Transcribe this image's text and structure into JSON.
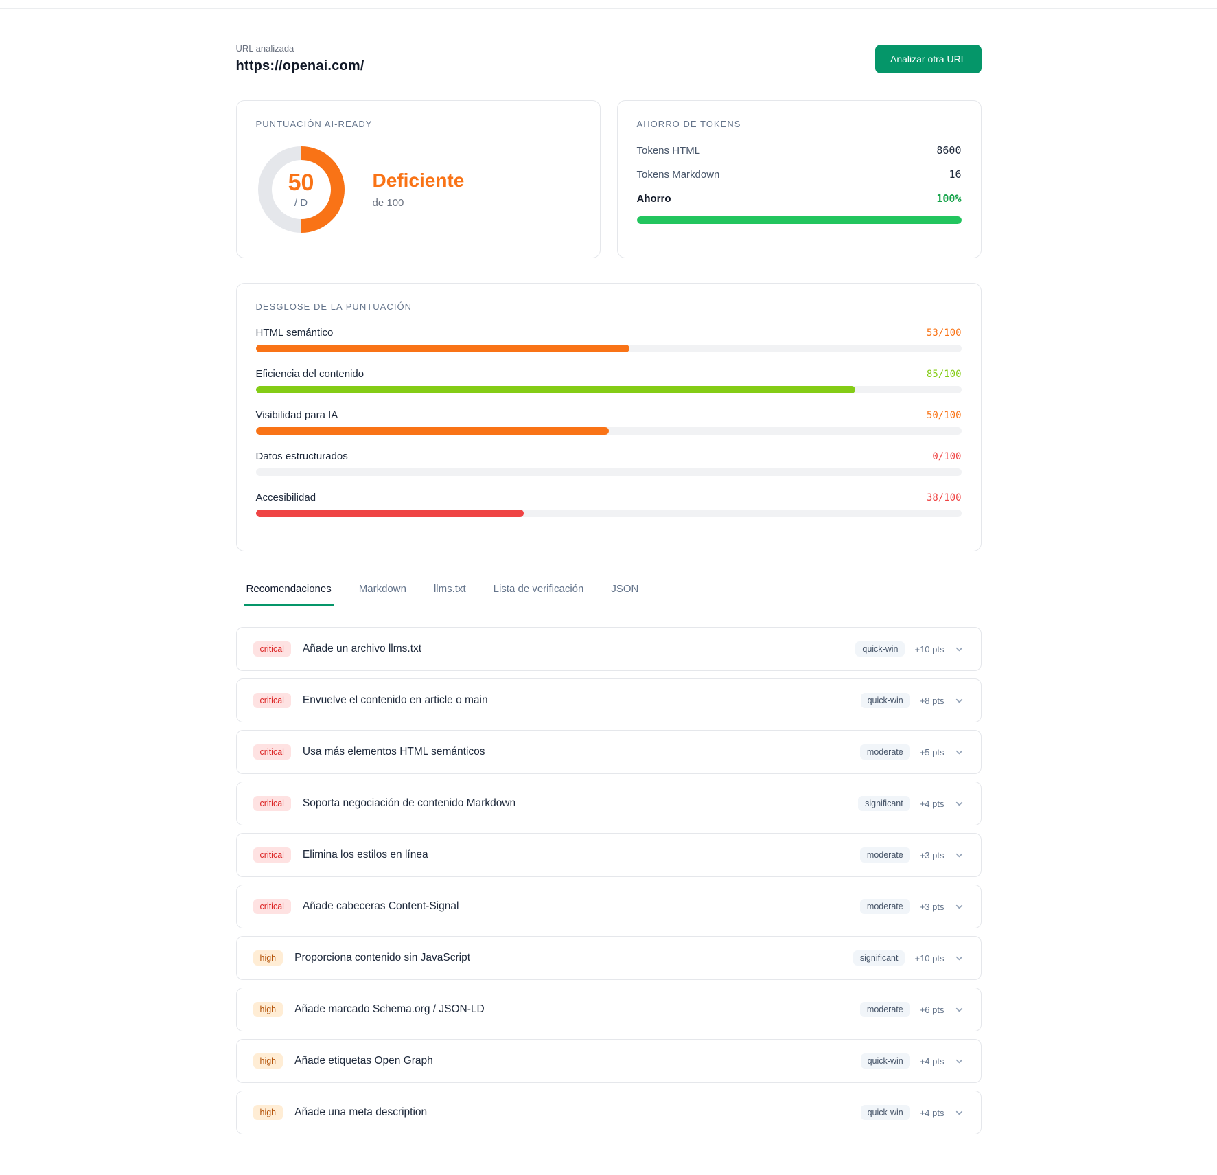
{
  "header": {
    "url_label": "URL analizada",
    "url": "https://openai.com/",
    "analyze_button": "Analizar otra URL",
    "button_color": "#059669"
  },
  "score_card": {
    "title": "PUNTUACIÓN AI-READY",
    "score": "50",
    "score_pct": 50,
    "grade": "/ D",
    "verdict": "Deficiente",
    "of_label": "de 100",
    "color": "#f97316",
    "track_color": "#e5e7eb"
  },
  "tokens_card": {
    "title": "AHORRO DE TOKENS",
    "rows": [
      {
        "label": "Tokens HTML",
        "value": "8600"
      },
      {
        "label": "Tokens Markdown",
        "value": "16"
      }
    ],
    "savings_label": "Ahorro",
    "savings_value": "100%",
    "savings_pct": 100,
    "bar_color": "#22c55e"
  },
  "breakdown": {
    "title": "DESGLOSE DE LA PUNTUACIÓN",
    "metrics": [
      {
        "label": "HTML semántico",
        "value": "53/100",
        "pct": 53,
        "color": "#f97316"
      },
      {
        "label": "Eficiencia del contenido",
        "value": "85/100",
        "pct": 85,
        "color": "#84cc16"
      },
      {
        "label": "Visibilidad para IA",
        "value": "50/100",
        "pct": 50,
        "color": "#f97316"
      },
      {
        "label": "Datos estructurados",
        "value": "0/100",
        "pct": 0,
        "color": "#ef4444"
      },
      {
        "label": "Accesibilidad",
        "value": "38/100",
        "pct": 38,
        "color": "#ef4444"
      }
    ]
  },
  "tabs": [
    {
      "label": "Recomendaciones",
      "active": true
    },
    {
      "label": "Markdown",
      "active": false
    },
    {
      "label": "llms.txt",
      "active": false
    },
    {
      "label": "Lista de verificación",
      "active": false
    },
    {
      "label": "JSON",
      "active": false
    }
  ],
  "recommendations": [
    {
      "severity": "critical",
      "title": "Añade un archivo llms.txt",
      "effort": "quick-win",
      "points": "+10 pts"
    },
    {
      "severity": "critical",
      "title": "Envuelve el contenido en article o main",
      "effort": "quick-win",
      "points": "+8 pts"
    },
    {
      "severity": "critical",
      "title": "Usa más elementos HTML semánticos",
      "effort": "moderate",
      "points": "+5 pts"
    },
    {
      "severity": "critical",
      "title": "Soporta negociación de contenido Markdown",
      "effort": "significant",
      "points": "+4 pts"
    },
    {
      "severity": "critical",
      "title": "Elimina los estilos en línea",
      "effort": "moderate",
      "points": "+3 pts"
    },
    {
      "severity": "critical",
      "title": "Añade cabeceras Content-Signal",
      "effort": "moderate",
      "points": "+3 pts"
    },
    {
      "severity": "high",
      "title": "Proporciona contenido sin JavaScript",
      "effort": "significant",
      "points": "+10 pts"
    },
    {
      "severity": "high",
      "title": "Añade marcado Schema.org / JSON-LD",
      "effort": "moderate",
      "points": "+6 pts"
    },
    {
      "severity": "high",
      "title": "Añade etiquetas Open Graph",
      "effort": "quick-win",
      "points": "+4 pts"
    },
    {
      "severity": "high",
      "title": "Añade una meta description",
      "effort": "quick-win",
      "points": "+4 pts"
    }
  ]
}
